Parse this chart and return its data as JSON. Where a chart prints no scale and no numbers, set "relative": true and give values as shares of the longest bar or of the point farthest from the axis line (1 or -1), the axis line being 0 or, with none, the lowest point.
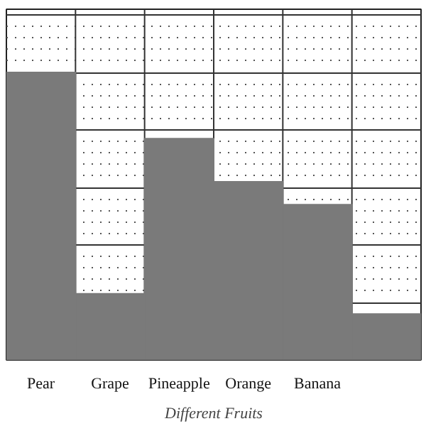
{
  "chart_data": {
    "type": "bar",
    "xlabel": "Different Fruits",
    "categories": [
      "Pear",
      "Grape",
      "Pineapple",
      "Orange",
      "Banana",
      null
    ],
    "values": [
      1,
      0.23,
      0.77,
      0.62,
      0.54,
      0.16
    ],
    "color": "#7a7a7a",
    "relative": true,
    "grid": true
  }
}
